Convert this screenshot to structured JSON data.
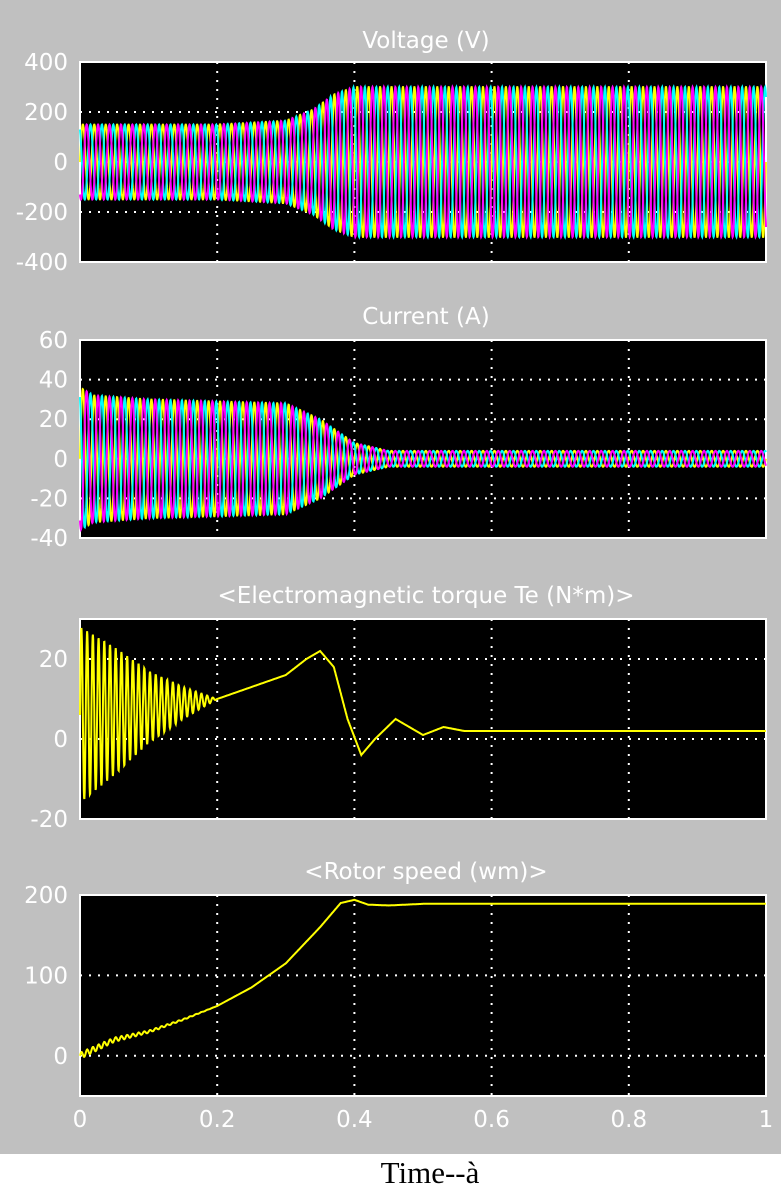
{
  "figure": {
    "xlabel": "Time--à",
    "colors": {
      "frame": "#c0c0c0",
      "plot_bg": "#000000",
      "grid": "#ffffff",
      "text": "#ffffff"
    },
    "x_ticks": [
      "0",
      "0.2",
      "0.4",
      "0.6",
      "0.8",
      "1"
    ]
  },
  "chart_data": [
    {
      "type": "line",
      "title": "Voltage (V)",
      "xlim": [
        0,
        1
      ],
      "ylim": [
        -400,
        400
      ],
      "y_ticks": [
        "400",
        "200",
        "0",
        "-200",
        "-400"
      ],
      "y_tick_values": [
        400,
        200,
        0,
        -200,
        -400
      ],
      "grid": true,
      "frequency_hz": 60,
      "series": [
        {
          "phase_deg": 0,
          "color": "#ffff00"
        },
        {
          "phase_deg": 120,
          "color": "#00ffff"
        },
        {
          "phase_deg": 240,
          "color": "#ff00ff"
        }
      ],
      "amplitude_envelope": {
        "t": [
          0,
          0.2,
          0.3,
          0.34,
          0.37,
          0.4,
          1.0
        ],
        "amp": [
          150,
          150,
          165,
          210,
          270,
          300,
          300
        ]
      }
    },
    {
      "type": "line",
      "title": "Current (A)",
      "xlim": [
        0,
        1
      ],
      "ylim": [
        -40,
        60
      ],
      "y_ticks": [
        "60",
        "40",
        "20",
        "0",
        "-20",
        "-40"
      ],
      "y_tick_values": [
        60,
        40,
        20,
        0,
        -20,
        -40
      ],
      "grid": true,
      "frequency_hz": 60,
      "series": [
        {
          "phase_deg": 0,
          "color": "#ffff00"
        },
        {
          "phase_deg": 120,
          "color": "#00ffff"
        },
        {
          "phase_deg": 240,
          "color": "#ff00ff"
        }
      ],
      "amplitude_envelope": {
        "t": [
          0,
          0.02,
          0.1,
          0.3,
          0.35,
          0.4,
          0.45,
          1.0
        ],
        "amp": [
          36,
          32,
          30,
          28,
          20,
          8,
          4,
          4
        ]
      }
    },
    {
      "type": "line",
      "title": "<Electromagnetic torque Te (N*m)>",
      "xlim": [
        0,
        1
      ],
      "ylim": [
        -20,
        30
      ],
      "y_ticks": [
        "20",
        "0",
        "-20"
      ],
      "y_tick_values": [
        20,
        0,
        -20
      ],
      "grid": true,
      "series": [
        {
          "color": "#ffff00",
          "base": {
            "t": [
              0,
              0.1,
              0.15,
              0.2,
              0.25,
              0.3,
              0.33,
              0.35,
              0.37,
              0.39,
              0.41,
              0.43,
              0.46,
              0.5,
              0.53,
              0.56,
              0.6,
              1.0
            ],
            "v": [
              6,
              8,
              9,
              10,
              13,
              16,
              20,
              22,
              18,
              5,
              -4,
              0,
              5,
              1,
              3,
              2,
              2,
              2
            ]
          },
          "oscillation": {
            "freq_hz": 120,
            "t": [
              0,
              0.05,
              0.1,
              0.15,
              0.2
            ],
            "amp": [
              22,
              16,
              9,
              4,
              0
            ]
          }
        }
      ]
    },
    {
      "type": "line",
      "title": "<Rotor speed (wm)>",
      "xlim": [
        0,
        1
      ],
      "ylim": [
        -50,
        200
      ],
      "y_ticks": [
        "200",
        "100",
        "0"
      ],
      "y_tick_values": [
        200,
        100,
        0
      ],
      "grid": true,
      "series": [
        {
          "color": "#ffff00",
          "t": [
            0,
            0.05,
            0.1,
            0.15,
            0.2,
            0.25,
            0.3,
            0.35,
            0.38,
            0.4,
            0.42,
            0.45,
            0.5,
            1.0
          ],
          "v": [
            0,
            20,
            30,
            45,
            62,
            85,
            115,
            160,
            190,
            194,
            188,
            187,
            189,
            189
          ],
          "ripple": {
            "freq_hz": 120,
            "t": [
              0,
              0.1,
              0.2
            ],
            "amp": [
              4,
              1.5,
              0
            ]
          }
        }
      ]
    }
  ]
}
